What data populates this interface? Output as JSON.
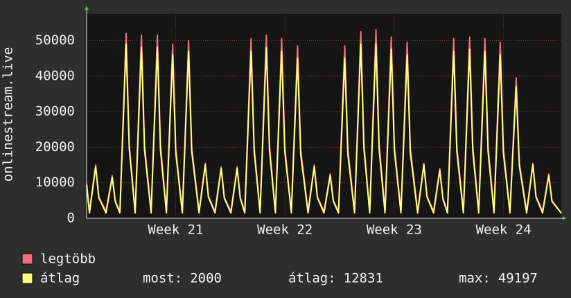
{
  "chart_data": {
    "type": "line",
    "ylabel": "onlinestream.live",
    "x": [
      0,
      0.18,
      0.58,
      0.78,
      1.24,
      1.64,
      1.84,
      2.13,
      2.53,
      2.73,
      3.11,
      3.51,
      3.71,
      4.13,
      4.53,
      4.73,
      5.11,
      5.51,
      5.71,
      6.13,
      6.53,
      6.73,
      7.2,
      7.6,
      7.8,
      8.22,
      8.62,
      8.82,
      9.24,
      9.64,
      9.84,
      10.13,
      10.53,
      10.73,
      11.11,
      11.51,
      11.71,
      12.09,
      12.49,
      12.69,
      13.11,
      13.51,
      13.71,
      14.18,
      14.58,
      14.78,
      15.2,
      15.6,
      15.8,
      16.13,
      16.53,
      16.73,
      17.16,
      17.56,
      17.76,
      18.13,
      18.53,
      18.73,
      19.11,
      19.51,
      19.71,
      20.13,
      20.53,
      20.73,
      21.2,
      21.6,
      21.8,
      22.22,
      22.62,
      22.82,
      23.11,
      23.51,
      23.71,
      24.13,
      24.53,
      24.73,
      25.11,
      25.51,
      25.71,
      26.09,
      26.49,
      26.69,
      27.11,
      27.51,
      27.71,
      28.18,
      28.58,
      28.78,
      29.2,
      29.6,
      29.8,
      30.4
    ],
    "series": [
      {
        "name": "legtöbb",
        "color": "#f07080",
        "values": [
          10000,
          2000,
          15000,
          6000,
          2000,
          12000,
          4800,
          2000,
          52000,
          20800,
          2000,
          51500,
          20600,
          2000,
          51500,
          20600,
          2000,
          49000,
          19600,
          2000,
          50000,
          20000,
          2000,
          15500,
          6200,
          2000,
          14500,
          5800,
          2000,
          14500,
          5800,
          2000,
          50500,
          20200,
          2000,
          51500,
          20600,
          2000,
          50500,
          20200,
          2000,
          48500,
          19400,
          2000,
          15000,
          6000,
          2000,
          12500,
          5000,
          2000,
          48500,
          19400,
          2000,
          52500,
          21000,
          2000,
          53000,
          21200,
          2000,
          51000,
          20400,
          2000,
          49500,
          19800,
          2000,
          15500,
          6200,
          2000,
          14000,
          5600,
          2000,
          50500,
          20200,
          2000,
          51000,
          20400,
          2000,
          50500,
          20200,
          2000,
          49500,
          19800,
          2000,
          39500,
          15800,
          2000,
          15500,
          6200,
          2000,
          12500,
          5000,
          1500
        ]
      },
      {
        "name": "átlag",
        "color": "#ffff80",
        "values": [
          9500,
          1500,
          14500,
          5800,
          1500,
          11500,
          4600,
          1500,
          49000,
          19600,
          1500,
          48000,
          19200,
          1500,
          48000,
          19200,
          1500,
          46000,
          18400,
          1500,
          47000,
          18800,
          1500,
          15000,
          6000,
          1500,
          14000,
          5600,
          1500,
          14000,
          5600,
          1500,
          47000,
          18800,
          1500,
          48000,
          19200,
          1500,
          47000,
          18800,
          1500,
          45000,
          18000,
          1500,
          14500,
          5800,
          1500,
          12000,
          4800,
          1500,
          45000,
          18000,
          1500,
          49000,
          19600,
          1500,
          49000,
          19600,
          1500,
          47500,
          19000,
          1500,
          46000,
          18400,
          1500,
          15000,
          6000,
          1500,
          13500,
          5400,
          1500,
          47000,
          18800,
          1500,
          47500,
          19000,
          1500,
          47000,
          18800,
          1500,
          46000,
          18400,
          1500,
          37000,
          14800,
          1500,
          15000,
          6000,
          1500,
          12000,
          4800,
          1400
        ]
      }
    ],
    "xlim": [
      0,
      30.4
    ],
    "xticks": [
      {
        "value": 5.7,
        "label": "Week 21"
      },
      {
        "value": 12.7,
        "label": "Week 22"
      },
      {
        "value": 19.7,
        "label": "Week 23"
      },
      {
        "value": 26.7,
        "label": "Week 24"
      }
    ],
    "ylim": [
      0,
      57500
    ],
    "yticks": [
      0,
      10000,
      20000,
      30000,
      40000,
      50000
    ],
    "grid": true,
    "stats": [
      {
        "label": "most:",
        "value": 2000
      },
      {
        "label": "átlag:",
        "value": 12831
      },
      {
        "label": "max:",
        "value": 49197
      }
    ]
  }
}
